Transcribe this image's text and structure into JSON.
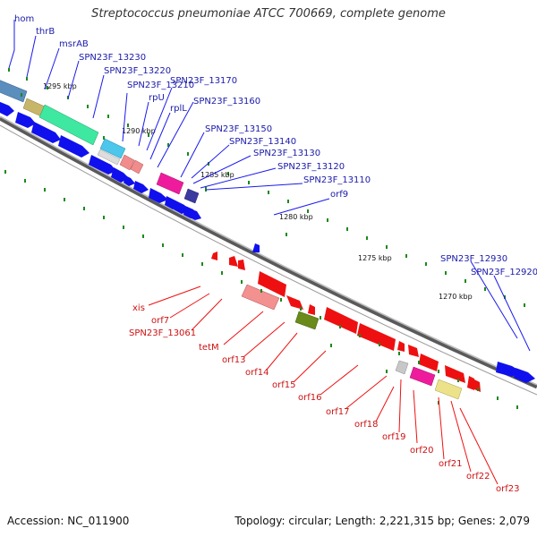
{
  "title": "Streptococcus pneumoniae ATCC 700669, complete genome",
  "footer": {
    "accession": "Accession: NC_011900",
    "topology": "Topology: circular; Length: 2,221,315 bp; Genes: 2,079"
  },
  "scale_labels": [
    "1295 kbp",
    "1290 kbp",
    "1285 kbp",
    "1280 kbp",
    "1275 kbp",
    "1270 kbp"
  ],
  "genes_upper": [
    "hom",
    "thrB",
    "msrAB",
    "SPN23F_13230",
    "SPN23F_13220",
    "SPN23F_13210",
    "rpU",
    "SPN23F_13170",
    "rplL",
    "SPN23F_13160",
    "SPN23F_13150",
    "SPN23F_13140",
    "SPN23F_13130",
    "SPN23F_13120",
    "SPN23F_13110",
    "orf9"
  ],
  "genes_right": [
    "SPN23F_12930",
    "SPN23F_12920"
  ],
  "genes_lower": [
    "xis",
    "orf7",
    "SPN23F_13061",
    "tetM",
    "orf13",
    "orf14",
    "orf15",
    "orf16",
    "orf17",
    "orf18",
    "orf19",
    "orf20",
    "orf21",
    "orf22",
    "orf23"
  ],
  "colors": {
    "forward_strand": "#0000ee",
    "reverse_strand": "#ee0000",
    "backbone": "#888888",
    "tick": "#1a8a1a",
    "upper_label": "#1a1aaa",
    "lower_label": "#cc1111"
  }
}
